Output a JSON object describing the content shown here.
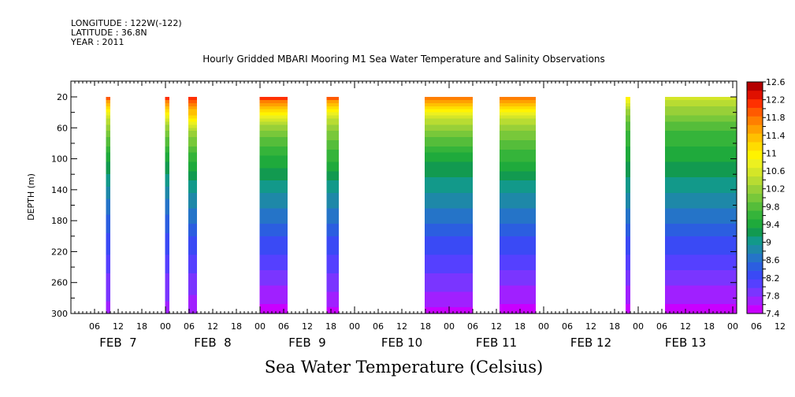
{
  "header": {
    "longitude": "LONGITUDE : 122W(-122)",
    "latitude": "LATITUDE : 36.8N",
    "year": "YEAR : 2011"
  },
  "chart_data": {
    "type": "heatmap",
    "title": "Hourly Gridded MBARI Mooring M1 Sea Water Temperature and Salinity Observations",
    "xlabel": "Sea Water Temperature (Celsius)",
    "ylabel": "DEPTH (m)",
    "x_range_hours": [
      0,
      169
    ],
    "x_origin": "FEB 7 00:00",
    "ylim": [
      300,
      20
    ],
    "y_ticks": [
      20,
      60,
      100,
      140,
      180,
      220,
      260,
      300
    ],
    "x_hour_ticks": [
      "06",
      "12",
      "18",
      "00",
      "06",
      "12",
      "18",
      "00",
      "06",
      "12",
      "18",
      "00",
      "06",
      "12",
      "18",
      "00",
      "06",
      "12",
      "18",
      "00",
      "06",
      "12",
      "18",
      "00",
      "06",
      "12",
      "18",
      "00",
      "06",
      "12",
      "18",
      "00"
    ],
    "x_day_labels": [
      "FEB  7",
      "FEB  8",
      "FEB  9",
      "FEB 10",
      "FEB 11",
      "FEB 12",
      "FEB 13"
    ],
    "colorbar": {
      "levels": [
        7.4,
        7.6,
        7.8,
        8.0,
        8.2,
        8.4,
        8.6,
        8.8,
        9.0,
        9.2,
        9.4,
        9.6,
        9.8,
        10.0,
        10.2,
        10.4,
        10.6,
        10.8,
        11.0,
        11.2,
        11.4,
        11.6,
        11.8,
        12.0,
        12.2,
        12.4,
        12.6
      ],
      "labels": [
        "12.6",
        "12.2",
        "11.8",
        "11.4",
        "11",
        "10.6",
        "10.2",
        "9.8",
        "9.4",
        "9",
        "8.6",
        "8.2",
        "7.8",
        "7.4"
      ],
      "colors": [
        "#c800ff",
        "#a020ff",
        "#7a35ff",
        "#5540ff",
        "#3a4af5",
        "#2b5ee0",
        "#2574c8",
        "#1e88a8",
        "#12998a",
        "#129a50",
        "#1faa3c",
        "#35b43a",
        "#55bd3a",
        "#78c83a",
        "#98d038",
        "#b8dc32",
        "#d4e628",
        "#ecf020",
        "#fff300",
        "#ffdc00",
        "#ffc000",
        "#ffa000",
        "#ff7f00",
        "#ff5a00",
        "#ff3000",
        "#e01000",
        "#b40000"
      ]
    },
    "segments": [
      {
        "start_hour": 8.9,
        "end_hour": 10.0,
        "top_temp": 12.0,
        "profile": [
          [
            20,
            12.0
          ],
          [
            40,
            10.8
          ],
          [
            60,
            10.2
          ],
          [
            100,
            9.4
          ],
          [
            140,
            8.9
          ],
          [
            180,
            8.5
          ],
          [
            220,
            8.2
          ],
          [
            260,
            7.9
          ],
          [
            300,
            7.7
          ]
        ]
      },
      {
        "start_hour": 23.9,
        "end_hour": 25.0,
        "profile": [
          [
            20,
            12.2
          ],
          [
            40,
            11.0
          ],
          [
            60,
            10.2
          ],
          [
            100,
            9.4
          ],
          [
            140,
            8.9
          ],
          [
            180,
            8.5
          ],
          [
            220,
            8.2
          ],
          [
            260,
            7.9
          ],
          [
            300,
            7.7
          ]
        ]
      },
      {
        "start_hour": 29.8,
        "end_hour": 32.0,
        "profile": [
          [
            20,
            12.3
          ],
          [
            40,
            11.4
          ],
          [
            60,
            10.4
          ],
          [
            100,
            9.6
          ],
          [
            140,
            9.0
          ],
          [
            180,
            8.6
          ],
          [
            220,
            8.2
          ],
          [
            260,
            7.9
          ],
          [
            300,
            7.6
          ]
        ]
      },
      {
        "start_hour": 47.9,
        "end_hour": 55.0,
        "profile": [
          [
            20,
            12.2
          ],
          [
            40,
            11.0
          ],
          [
            60,
            10.2
          ],
          [
            100,
            9.5
          ],
          [
            140,
            9.0
          ],
          [
            180,
            8.6
          ],
          [
            220,
            8.2
          ],
          [
            260,
            7.8
          ],
          [
            300,
            7.5
          ]
        ]
      },
      {
        "start_hour": 64.9,
        "end_hour": 68.0,
        "profile": [
          [
            20,
            12.0
          ],
          [
            40,
            10.8
          ],
          [
            60,
            10.2
          ],
          [
            100,
            9.6
          ],
          [
            140,
            9.0
          ],
          [
            180,
            8.6
          ],
          [
            220,
            8.2
          ],
          [
            260,
            7.9
          ],
          [
            300,
            7.5
          ]
        ]
      },
      {
        "start_hour": 89.8,
        "end_hour": 102.0,
        "profile": [
          [
            20,
            11.8
          ],
          [
            40,
            10.8
          ],
          [
            60,
            10.2
          ],
          [
            100,
            9.4
          ],
          [
            140,
            9.0
          ],
          [
            180,
            8.6
          ],
          [
            220,
            8.2
          ],
          [
            260,
            7.9
          ],
          [
            300,
            7.5
          ]
        ]
      },
      {
        "start_hour": 108.8,
        "end_hour": 118.0,
        "profile": [
          [
            20,
            11.8
          ],
          [
            40,
            10.8
          ],
          [
            60,
            10.2
          ],
          [
            100,
            9.6
          ],
          [
            140,
            9.0
          ],
          [
            180,
            8.6
          ],
          [
            220,
            8.2
          ],
          [
            260,
            7.8
          ],
          [
            300,
            7.5
          ]
        ]
      },
      {
        "start_hour": 140.8,
        "end_hour": 142.0,
        "profile": [
          [
            20,
            11.0
          ],
          [
            40,
            10.2
          ],
          [
            60,
            9.8
          ],
          [
            100,
            9.4
          ],
          [
            140,
            9.0
          ],
          [
            180,
            8.6
          ],
          [
            220,
            8.2
          ],
          [
            260,
            7.8
          ],
          [
            300,
            7.5
          ]
        ]
      },
      {
        "start_hour": 150.8,
        "end_hour": 169.0,
        "profile": [
          [
            20,
            10.6
          ],
          [
            40,
            10.2
          ],
          [
            60,
            9.8
          ],
          [
            100,
            9.4
          ],
          [
            140,
            9.0
          ],
          [
            180,
            8.6
          ],
          [
            220,
            8.2
          ],
          [
            260,
            7.8
          ],
          [
            300,
            7.5
          ]
        ]
      }
    ],
    "grid": false,
    "legend": "right"
  }
}
